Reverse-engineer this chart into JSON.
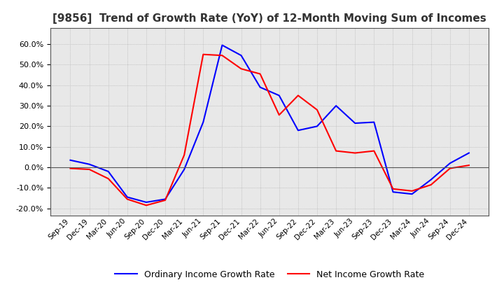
{
  "title": "[9856]  Trend of Growth Rate (YoY) of 12-Month Moving Sum of Incomes",
  "title_fontsize": 11,
  "ylim": [
    -0.235,
    0.68
  ],
  "yticks": [
    -0.2,
    -0.1,
    0.0,
    0.1,
    0.2,
    0.3,
    0.4,
    0.5,
    0.6
  ],
  "background_color": "#ffffff",
  "plot_bg_color": "#e8e8e8",
  "legend_labels": [
    "Ordinary Income Growth Rate",
    "Net Income Growth Rate"
  ],
  "legend_colors": [
    "#0000ff",
    "#ff0000"
  ],
  "x_labels": [
    "Sep-19",
    "Dec-19",
    "Mar-20",
    "Jun-20",
    "Sep-20",
    "Dec-20",
    "Mar-21",
    "Jun-21",
    "Sep-21",
    "Dec-21",
    "Mar-22",
    "Jun-22",
    "Sep-22",
    "Dec-22",
    "Mar-23",
    "Jun-23",
    "Sep-23",
    "Dec-23",
    "Mar-24",
    "Jun-24",
    "Sep-24",
    "Dec-24"
  ],
  "ordinary_income": [
    0.035,
    0.015,
    -0.02,
    -0.145,
    -0.17,
    -0.155,
    -0.01,
    0.22,
    0.595,
    0.545,
    0.39,
    0.35,
    0.18,
    0.2,
    0.3,
    0.215,
    0.22,
    -0.12,
    -0.13,
    -0.06,
    0.02,
    0.07
  ],
  "net_income": [
    -0.005,
    -0.01,
    -0.055,
    -0.155,
    -0.185,
    -0.16,
    0.06,
    0.55,
    0.545,
    0.48,
    0.455,
    0.255,
    0.35,
    0.28,
    0.08,
    0.07,
    0.08,
    -0.105,
    -0.115,
    -0.085,
    -0.005,
    0.01
  ]
}
